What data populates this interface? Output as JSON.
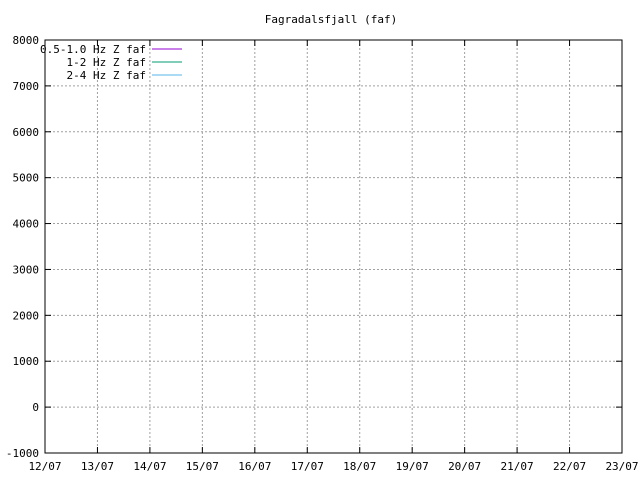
{
  "chart_data": {
    "type": "line",
    "title": "Fagradalsfjall (faf)",
    "xlabel": "",
    "ylabel": "",
    "x_ticks": [
      "12/07",
      "13/07",
      "14/07",
      "15/07",
      "16/07",
      "17/07",
      "18/07",
      "19/07",
      "20/07",
      "21/07",
      "22/07",
      "23/07"
    ],
    "ylim": [
      -1000,
      8000
    ],
    "y_ticks": [
      -1000,
      0,
      1000,
      2000,
      3000,
      4000,
      5000,
      6000,
      7000,
      8000
    ],
    "grid": true,
    "legend_position": "top-left",
    "series": [
      {
        "name": "0.5-1.0 Hz Z faf",
        "color": "#9400d3",
        "values": []
      },
      {
        "name": "1-2 Hz Z faf",
        "color": "#009e73",
        "values": []
      },
      {
        "name": "2-4 Hz Z faf",
        "color": "#56b4e9",
        "values": []
      }
    ]
  }
}
